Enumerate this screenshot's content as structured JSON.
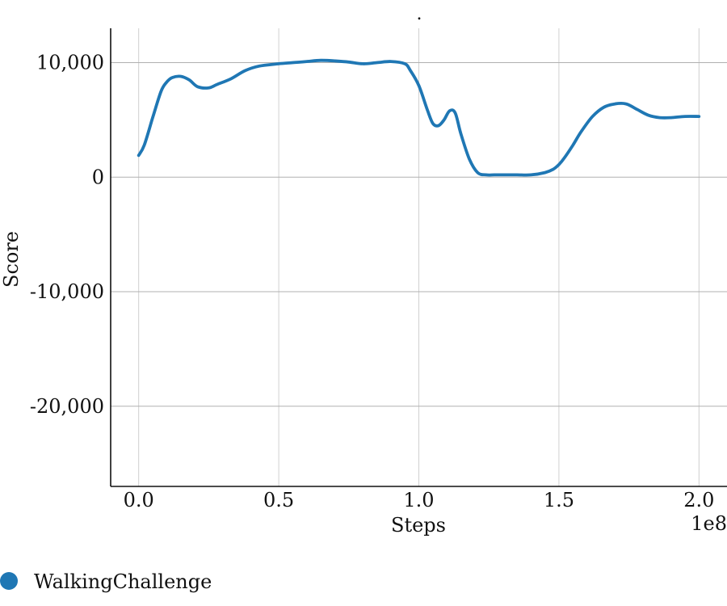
{
  "chart_data": {
    "type": "line",
    "title": ".",
    "xlabel": "Steps",
    "ylabel": "Score",
    "x_offset_label": "1e8",
    "xlim": [
      -0.1,
      2.1
    ],
    "ylim": [
      -27000,
      13000
    ],
    "x_ticks": [
      0.0,
      0.5,
      1.0,
      1.5,
      2.0
    ],
    "x_tick_labels": [
      "0.0",
      "0.5",
      "1.0",
      "1.5",
      "2.0"
    ],
    "y_ticks": [
      10000,
      0,
      -10000,
      -20000
    ],
    "y_tick_labels": [
      "10,000",
      "0",
      "-10,000",
      "-20,000"
    ],
    "grid": true,
    "legend_position": "bottom-left",
    "series": [
      {
        "name": "WalkingChallenge",
        "color": "#1f77b4",
        "x": [
          0.0,
          0.02,
          0.05,
          0.08,
          0.1,
          0.12,
          0.15,
          0.18,
          0.21,
          0.25,
          0.28,
          0.33,
          0.38,
          0.43,
          0.5,
          0.55,
          0.6,
          0.65,
          0.7,
          0.75,
          0.8,
          0.85,
          0.9,
          0.95,
          0.97,
          1.0,
          1.03,
          1.05,
          1.07,
          1.09,
          1.11,
          1.13,
          1.15,
          1.18,
          1.21,
          1.24,
          1.27,
          1.3,
          1.35,
          1.4,
          1.45,
          1.48,
          1.5,
          1.52,
          1.55,
          1.58,
          1.62,
          1.66,
          1.7,
          1.74,
          1.78,
          1.82,
          1.86,
          1.9,
          1.95,
          2.0
        ],
        "y": [
          1900,
          2800,
          5200,
          7500,
          8300,
          8700,
          8800,
          8500,
          7900,
          7800,
          8100,
          8600,
          9300,
          9700,
          9900,
          10000,
          10100,
          10200,
          10150,
          10050,
          9900,
          10000,
          10100,
          9900,
          9300,
          8000,
          5900,
          4700,
          4500,
          5000,
          5800,
          5600,
          3800,
          1600,
          400,
          200,
          200,
          200,
          200,
          200,
          400,
          700,
          1100,
          1700,
          2800,
          4000,
          5300,
          6100,
          6400,
          6400,
          5900,
          5400,
          5200,
          5200,
          5300,
          5300
        ]
      }
    ]
  }
}
